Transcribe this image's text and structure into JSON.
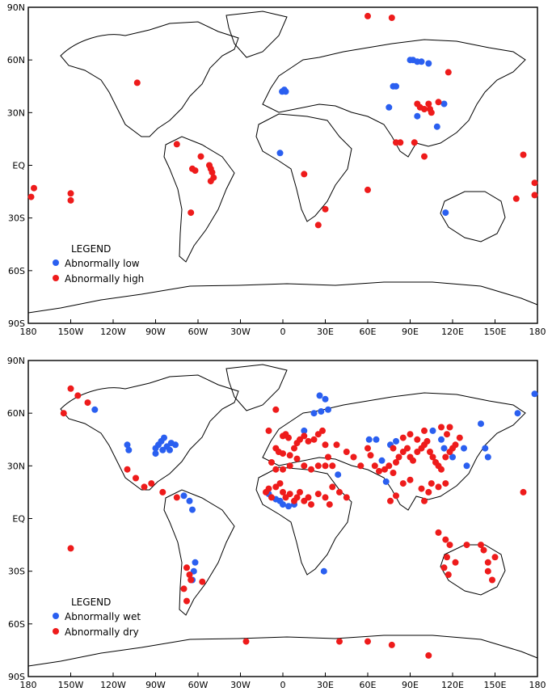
{
  "colors": {
    "low": "#2a5ff0",
    "high": "#ee1b1b"
  },
  "maps": [
    {
      "lat_ticks": [
        "90N",
        "60N",
        "30N",
        "EQ",
        "30S",
        "60S",
        "90S"
      ],
      "lon_ticks": [
        "180",
        "150W",
        "120W",
        "90W",
        "60W",
        "30W",
        "0",
        "30E",
        "60E",
        "90E",
        "120E",
        "150E",
        "180"
      ],
      "legend": {
        "title": "LEGEND",
        "items": [
          {
            "label": "Abnormally low",
            "color": "#2a5ff0"
          },
          {
            "label": "Abnormally high",
            "color": "#ee1b1b"
          }
        ]
      },
      "points": {
        "blue": [
          [
            -0.5,
            42
          ],
          [
            1,
            43
          ],
          [
            2,
            42
          ],
          [
            78,
            45
          ],
          [
            80,
            45
          ],
          [
            90,
            60
          ],
          [
            92,
            60
          ],
          [
            95,
            59
          ],
          [
            98,
            59
          ],
          [
            103,
            58
          ],
          [
            75,
            33
          ],
          [
            95,
            28
          ],
          [
            109,
            22
          ],
          [
            -2,
            7
          ],
          [
            115,
            -27
          ],
          [
            114,
            35
          ]
        ],
        "red": [
          [
            -103,
            47
          ],
          [
            -75,
            12
          ],
          [
            -58,
            5
          ],
          [
            -62,
            -3
          ],
          [
            -64,
            -2
          ],
          [
            -52,
            0
          ],
          [
            -51,
            -2
          ],
          [
            -50,
            -4
          ],
          [
            -49,
            -7
          ],
          [
            -51,
            -9
          ],
          [
            -65,
            -27
          ],
          [
            -178,
            -18
          ],
          [
            -176,
            -13
          ],
          [
            -150,
            -16
          ],
          [
            -150,
            -20
          ],
          [
            60,
            85
          ],
          [
            77,
            84
          ],
          [
            95,
            35
          ],
          [
            97,
            33
          ],
          [
            100,
            32
          ],
          [
            103,
            35
          ],
          [
            104,
            32
          ],
          [
            105,
            30
          ],
          [
            110,
            36
          ],
          [
            117,
            53
          ],
          [
            80,
            13
          ],
          [
            83,
            13
          ],
          [
            93,
            13
          ],
          [
            100,
            5
          ],
          [
            15,
            -5
          ],
          [
            30,
            -25
          ],
          [
            25,
            -34
          ],
          [
            60,
            -14
          ],
          [
            165,
            -19
          ],
          [
            178,
            -10
          ],
          [
            178,
            -17
          ],
          [
            170,
            6
          ]
        ]
      }
    },
    {
      "lat_ticks": [
        "90N",
        "60N",
        "30N",
        "EQ",
        "30S",
        "60S",
        "90S"
      ],
      "lon_ticks": [
        "180",
        "150W",
        "120W",
        "90W",
        "60W",
        "30W",
        "0",
        "30E",
        "60E",
        "90E",
        "120E",
        "150E",
        "180"
      ],
      "legend": {
        "title": "LEGEND",
        "items": [
          {
            "label": "Abnormally wet",
            "color": "#2a5ff0"
          },
          {
            "label": "Abnormally dry",
            "color": "#ee1b1b"
          }
        ]
      },
      "points": {
        "blue": [
          [
            -133,
            62
          ],
          [
            -110,
            42
          ],
          [
            -109,
            39
          ],
          [
            -90,
            40
          ],
          [
            -88,
            42
          ],
          [
            -86,
            44
          ],
          [
            -84,
            46
          ],
          [
            -82,
            41
          ],
          [
            -80,
            39
          ],
          [
            -79,
            43
          ],
          [
            -76,
            42
          ],
          [
            -90,
            37
          ],
          [
            -85,
            39
          ],
          [
            -70,
            13
          ],
          [
            -66,
            10
          ],
          [
            -64,
            5
          ],
          [
            -62,
            -25
          ],
          [
            -63,
            -30
          ],
          [
            -64,
            -35
          ],
          [
            26,
            70
          ],
          [
            30,
            68
          ],
          [
            32,
            62
          ],
          [
            27,
            61
          ],
          [
            22,
            60
          ],
          [
            15,
            50
          ],
          [
            39,
            25
          ],
          [
            61,
            45
          ],
          [
            66,
            45
          ],
          [
            70,
            33
          ],
          [
            73,
            21
          ],
          [
            76,
            42
          ],
          [
            80,
            44
          ],
          [
            106,
            50
          ],
          [
            112,
            45
          ],
          [
            114,
            40
          ],
          [
            120,
            35
          ],
          [
            128,
            40
          ],
          [
            130,
            30
          ],
          [
            140,
            54
          ],
          [
            143,
            40
          ],
          [
            145,
            35
          ],
          [
            166,
            60
          ],
          [
            178,
            71
          ],
          [
            29,
            -30
          ],
          [
            -10,
            14
          ],
          [
            -5,
            11
          ],
          [
            -2,
            10
          ],
          [
            0,
            8
          ],
          [
            4,
            7
          ],
          [
            8,
            8
          ]
        ],
        "red": [
          [
            -150,
            74
          ],
          [
            -145,
            70
          ],
          [
            -138,
            66
          ],
          [
            -155,
            60
          ],
          [
            -110,
            28
          ],
          [
            -104,
            23
          ],
          [
            -98,
            18
          ],
          [
            -93,
            20
          ],
          [
            -85,
            15
          ],
          [
            -75,
            12
          ],
          [
            -65,
            -35
          ],
          [
            -66,
            -32
          ],
          [
            -68,
            -28
          ],
          [
            -70,
            -40
          ],
          [
            -68,
            -47
          ],
          [
            -57,
            -36
          ],
          [
            -150,
            -17
          ],
          [
            -26,
            -70
          ],
          [
            40,
            -70
          ],
          [
            60,
            -70
          ],
          [
            77,
            -72
          ],
          [
            103,
            -78
          ],
          [
            -5,
            62
          ],
          [
            -10,
            50
          ],
          [
            0,
            47
          ],
          [
            2,
            48
          ],
          [
            4,
            46
          ],
          [
            -5,
            40
          ],
          [
            -3,
            38
          ],
          [
            0,
            37
          ],
          [
            5,
            36
          ],
          [
            8,
            40
          ],
          [
            10,
            43
          ],
          [
            12,
            45
          ],
          [
            15,
            47
          ],
          [
            18,
            44
          ],
          [
            22,
            45
          ],
          [
            25,
            48
          ],
          [
            28,
            50
          ],
          [
            30,
            42
          ],
          [
            32,
            35
          ],
          [
            38,
            42
          ],
          [
            45,
            38
          ],
          [
            50,
            35
          ],
          [
            55,
            30
          ],
          [
            60,
            40
          ],
          [
            62,
            36
          ],
          [
            65,
            30
          ],
          [
            68,
            27
          ],
          [
            72,
            28
          ],
          [
            75,
            30
          ],
          [
            78,
            26
          ],
          [
            80,
            32
          ],
          [
            82,
            35
          ],
          [
            85,
            38
          ],
          [
            88,
            40
          ],
          [
            90,
            35
          ],
          [
            92,
            33
          ],
          [
            95,
            38
          ],
          [
            98,
            40
          ],
          [
            100,
            42
          ],
          [
            102,
            44
          ],
          [
            104,
            38
          ],
          [
            106,
            35
          ],
          [
            108,
            32
          ],
          [
            110,
            30
          ],
          [
            112,
            28
          ],
          [
            115,
            35
          ],
          [
            118,
            38
          ],
          [
            120,
            40
          ],
          [
            122,
            42
          ],
          [
            125,
            46
          ],
          [
            116,
            48
          ],
          [
            118,
            52
          ],
          [
            112,
            52
          ],
          [
            100,
            50
          ],
          [
            95,
            45
          ],
          [
            90,
            48
          ],
          [
            85,
            46
          ],
          [
            78,
            40
          ],
          [
            -12,
            15
          ],
          [
            -10,
            17
          ],
          [
            -8,
            12
          ],
          [
            -5,
            18
          ],
          [
            -2,
            20
          ],
          [
            0,
            15
          ],
          [
            2,
            12
          ],
          [
            5,
            14
          ],
          [
            8,
            10
          ],
          [
            10,
            12
          ],
          [
            12,
            15
          ],
          [
            15,
            10
          ],
          [
            18,
            12
          ],
          [
            20,
            8
          ],
          [
            25,
            14
          ],
          [
            30,
            12
          ],
          [
            33,
            8
          ],
          [
            35,
            18
          ],
          [
            40,
            15
          ],
          [
            45,
            12
          ],
          [
            -8,
            32
          ],
          [
            -5,
            28
          ],
          [
            0,
            28
          ],
          [
            5,
            30
          ],
          [
            10,
            34
          ],
          [
            15,
            30
          ],
          [
            20,
            28
          ],
          [
            25,
            30
          ],
          [
            30,
            30
          ],
          [
            35,
            30
          ],
          [
            76,
            10
          ],
          [
            80,
            13
          ],
          [
            85,
            20
          ],
          [
            90,
            22
          ],
          [
            98,
            17
          ],
          [
            103,
            15
          ],
          [
            105,
            20
          ],
          [
            110,
            18
          ],
          [
            115,
            20
          ],
          [
            100,
            10
          ],
          [
            110,
            -8
          ],
          [
            115,
            -12
          ],
          [
            118,
            -15
          ],
          [
            116,
            -22
          ],
          [
            114,
            -28
          ],
          [
            117,
            -32
          ],
          [
            122,
            -25
          ],
          [
            130,
            -15
          ],
          [
            140,
            -15
          ],
          [
            142,
            -18
          ],
          [
            145,
            -25
          ],
          [
            150,
            -22
          ],
          [
            145,
            -30
          ],
          [
            148,
            -35
          ],
          [
            170,
            15
          ]
        ]
      }
    }
  ]
}
